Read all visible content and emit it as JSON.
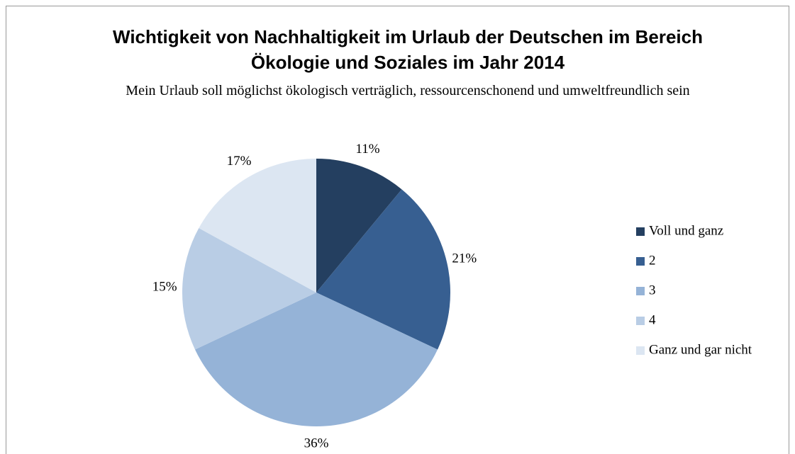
{
  "chart_data": {
    "type": "pie",
    "title": "Wichtigkeit von Nachhaltigkeit im Urlaub der Deutschen im Bereich Ökologie und Soziales im Jahr 2014",
    "subtitle": "Mein Urlaub soll möglichst ökologisch verträglich, ressourcenschonend und umweltfreundlich sein",
    "categories": [
      "Voll und ganz",
      "2",
      "3",
      "4",
      "Ganz und gar nicht"
    ],
    "values": [
      11,
      21,
      36,
      15,
      17
    ],
    "value_labels": [
      "11%",
      "21%",
      "36%",
      "15%",
      "17%"
    ],
    "colors": [
      "#243f60",
      "#375f91",
      "#95b3d7",
      "#b9cde5",
      "#dce6f2"
    ],
    "legend": "right"
  }
}
